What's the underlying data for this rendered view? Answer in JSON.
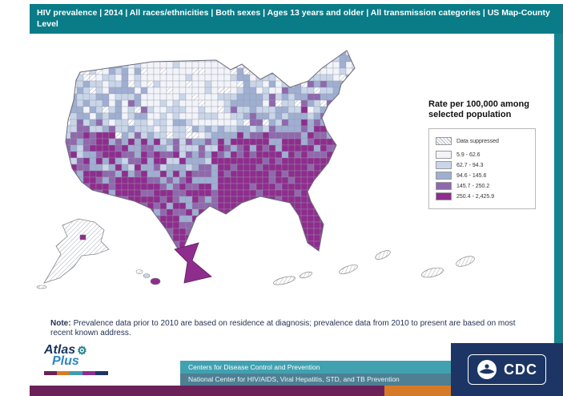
{
  "header": {
    "title": "HIV prevalence | 2014 | All races/ethnicities | Both sexes | Ages 13 years and older | All transmission categories | US Map-County Level"
  },
  "legend": {
    "title": "Rate per 100,000 among selected population",
    "items": [
      {
        "label": "Data suppressed",
        "type": "hatched",
        "color": "#ffffff"
      },
      {
        "label": "5.9 - 62.6",
        "type": "fill",
        "color": "#f2f4fa"
      },
      {
        "label": "62.7 - 94.3",
        "type": "fill",
        "color": "#c9d6ea"
      },
      {
        "label": "94.6 - 145.6",
        "type": "fill",
        "color": "#9fafd2"
      },
      {
        "label": "145.7 - 250.2",
        "type": "fill",
        "color": "#8f68ad"
      },
      {
        "label": "250.4 - 2,425.9",
        "type": "fill",
        "color": "#8e2d8e"
      }
    ]
  },
  "note": {
    "label": "Note:",
    "text": "Prevalence data prior to 2010 are based on residence at diagnosis; prevalence data from 2010 to present are based on most recent known address."
  },
  "footer": {
    "line1": "Centers for Disease Control and Prevention",
    "line2": "National Center for HIV/AIDS, Viral Hepatitis, STD, and TB Prevention"
  },
  "logos": {
    "atlas": {
      "line1": "Atlas",
      "line2": "Plus"
    },
    "cdc": {
      "text": "CDC"
    }
  },
  "colors": {
    "header_teal": "#0a7c87",
    "footer_teal": "#41a1b0",
    "footer_teal_dark": "#4e7f93",
    "right_strip_teal": "#16848f",
    "cdc_navy": "#1c3564",
    "strip_purple": "#6b2158",
    "strip_orange": "#d77a28"
  }
}
